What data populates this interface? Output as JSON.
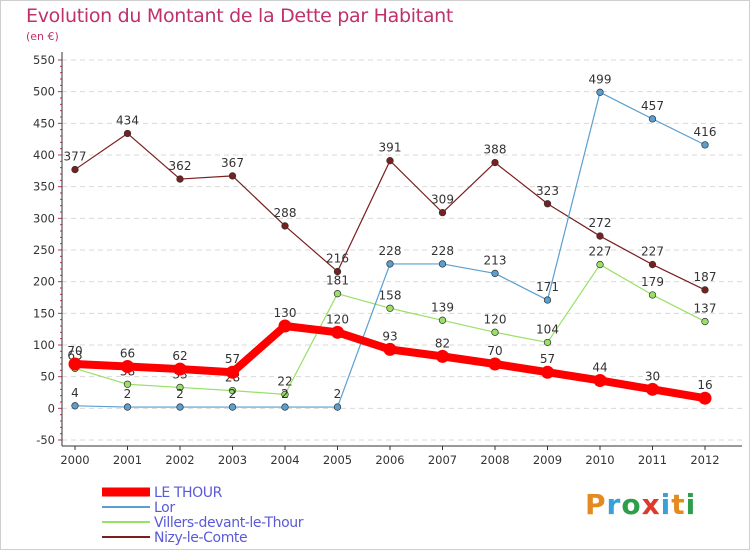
{
  "title": "Evolution du Montant de la Dette par Habitant",
  "subtitle": "(en €)",
  "logo_text": "Proxiti",
  "colors": {
    "title": "#c0306b",
    "grid": "#d9d9d9",
    "axis": "#333333",
    "logo": [
      "#e58a1f",
      "#3aa0d8",
      "#2f9e4a",
      "#e0392b",
      "#3aa0d8",
      "#e58a1f",
      "#2f9e4a"
    ]
  },
  "chart_data": {
    "type": "line",
    "title": "Evolution du Montant de la Dette par Habitant",
    "subtitle": "(en €)",
    "xlabel": "",
    "ylabel": "",
    "x": [
      "2000",
      "2001",
      "2002",
      "2003",
      "2004",
      "2005",
      "2006",
      "2007",
      "2008",
      "2009",
      "2010",
      "2011",
      "2012"
    ],
    "ylim": [
      -50,
      550
    ],
    "yticks": [
      -50,
      0,
      50,
      100,
      150,
      200,
      250,
      300,
      350,
      400,
      450,
      500,
      550
    ],
    "grid": "horizontal dashed",
    "legend_placement": "bottom-left",
    "series": [
      {
        "name": "Nizy-le-Comte",
        "color": "#7a1f1f",
        "values": [
          377,
          434,
          362,
          367,
          288,
          216,
          391,
          309,
          388,
          323,
          272,
          227,
          187
        ]
      },
      {
        "name": "Villers-devant-le-Thour",
        "color": "#99e066",
        "values": [
          63,
          38,
          33,
          28,
          22,
          181,
          158,
          139,
          120,
          104,
          227,
          179,
          137
        ]
      },
      {
        "name": "Lor",
        "color": "#5a9fd0",
        "values": [
          4,
          2,
          2,
          2,
          2,
          2,
          228,
          228,
          213,
          171,
          499,
          457,
          416
        ]
      },
      {
        "name": "LE THOUR",
        "color": "#ff0000",
        "values": [
          70,
          66,
          62,
          57,
          130,
          120,
          93,
          82,
          70,
          57,
          44,
          30,
          16
        ]
      }
    ],
    "legend": [
      "LE THOUR",
      "Lor",
      "Villers-devant-le-Thour",
      "Nizy-le-Comte"
    ]
  }
}
